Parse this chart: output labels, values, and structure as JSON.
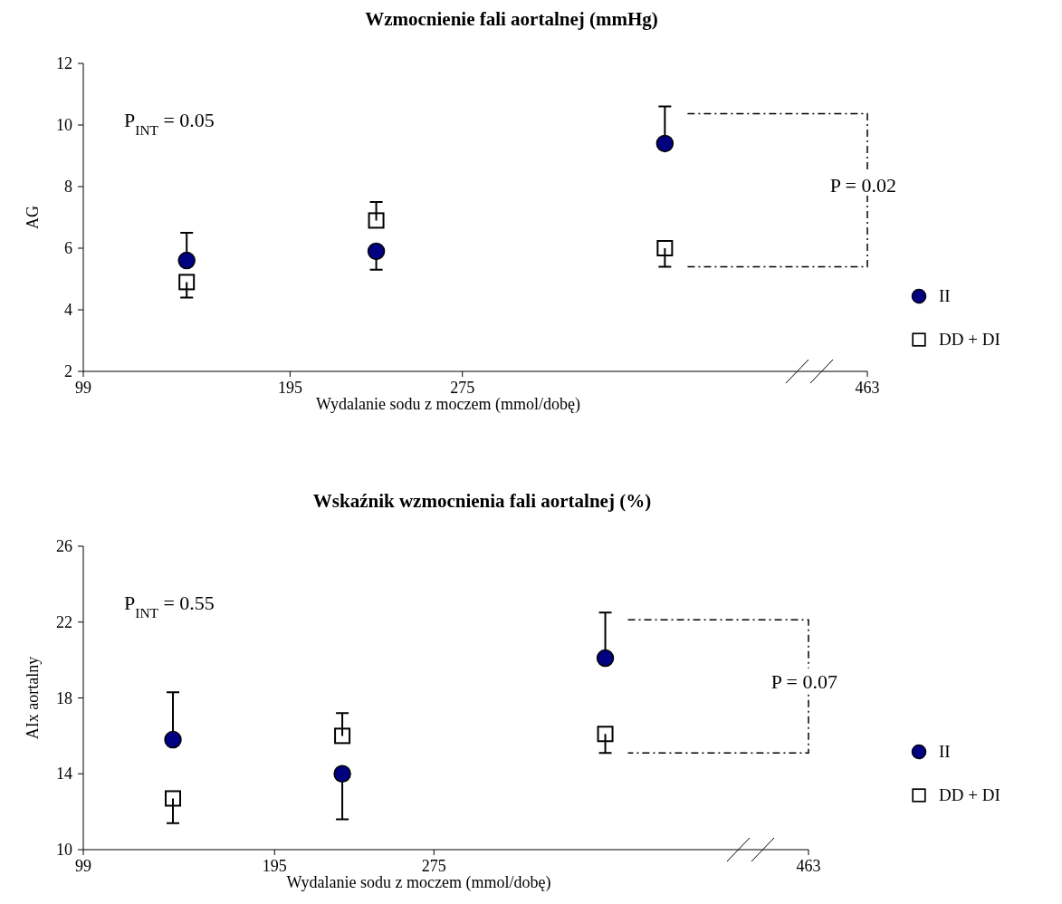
{
  "chart_data": [
    {
      "type": "scatter",
      "title": "Wzmocnienie fali aortalnej (mmHg)",
      "xlabel": "Wydalanie sodu z moczem (mmol/dobę)",
      "ylabel": "AG",
      "xlim": [
        99,
        463
      ],
      "xticks": [
        99,
        195,
        275,
        463
      ],
      "ylim": [
        2,
        12
      ],
      "yticks": [
        2,
        4,
        6,
        8,
        10,
        12
      ],
      "grid": false,
      "legend": "right",
      "annotations": [
        "P$_{INT}$ = 0.05",
        "P = 0.02"
      ],
      "series": [
        {
          "name": "II",
          "color": "#000080",
          "marker": "circle",
          "x": [
            147,
            235,
            369
          ],
          "values": [
            5.6,
            5.9,
            9.4
          ],
          "errors": [
            [
              5.6,
              6.5
            ],
            [
              5.3,
              5.9
            ],
            [
              9.4,
              10.6
            ]
          ]
        },
        {
          "name": "DD + DI",
          "color": "#000000",
          "marker": "square",
          "x": [
            147,
            235,
            369
          ],
          "values": [
            4.9,
            6.9,
            6.0
          ],
          "errors": [
            [
              4.4,
              4.9
            ],
            [
              6.9,
              7.5
            ],
            [
              5.4,
              6.0
            ]
          ]
        }
      ]
    },
    {
      "type": "scatter",
      "title": "Wskaźnik wzmocnienia fali aortalnej (%)",
      "xlabel": "Wydalanie sodu z moczem (mmol/dobę)",
      "ylabel": "AIx aortalny",
      "xlim": [
        99,
        463
      ],
      "xticks": [
        99,
        195,
        275,
        463
      ],
      "ylim": [
        10,
        26
      ],
      "yticks": [
        10,
        14,
        18,
        22,
        26
      ],
      "grid": false,
      "legend": "right",
      "annotations": [
        "P$_{INT}$ = 0.55",
        "P = 0.07"
      ],
      "series": [
        {
          "name": "II",
          "color": "#000080",
          "marker": "circle",
          "x": [
            144,
            229,
            361
          ],
          "values": [
            15.8,
            14.0,
            20.1
          ],
          "errors": [
            [
              15.8,
              18.3
            ],
            [
              11.6,
              14.0
            ],
            [
              20.1,
              22.5
            ]
          ]
        },
        {
          "name": "DD + DI",
          "color": "#000000",
          "marker": "square",
          "x": [
            144,
            229,
            361
          ],
          "values": [
            12.7,
            16.0,
            16.1
          ],
          "errors": [
            [
              11.4,
              12.7
            ],
            [
              16.0,
              17.2
            ],
            [
              15.1,
              16.1
            ]
          ]
        }
      ]
    }
  ]
}
